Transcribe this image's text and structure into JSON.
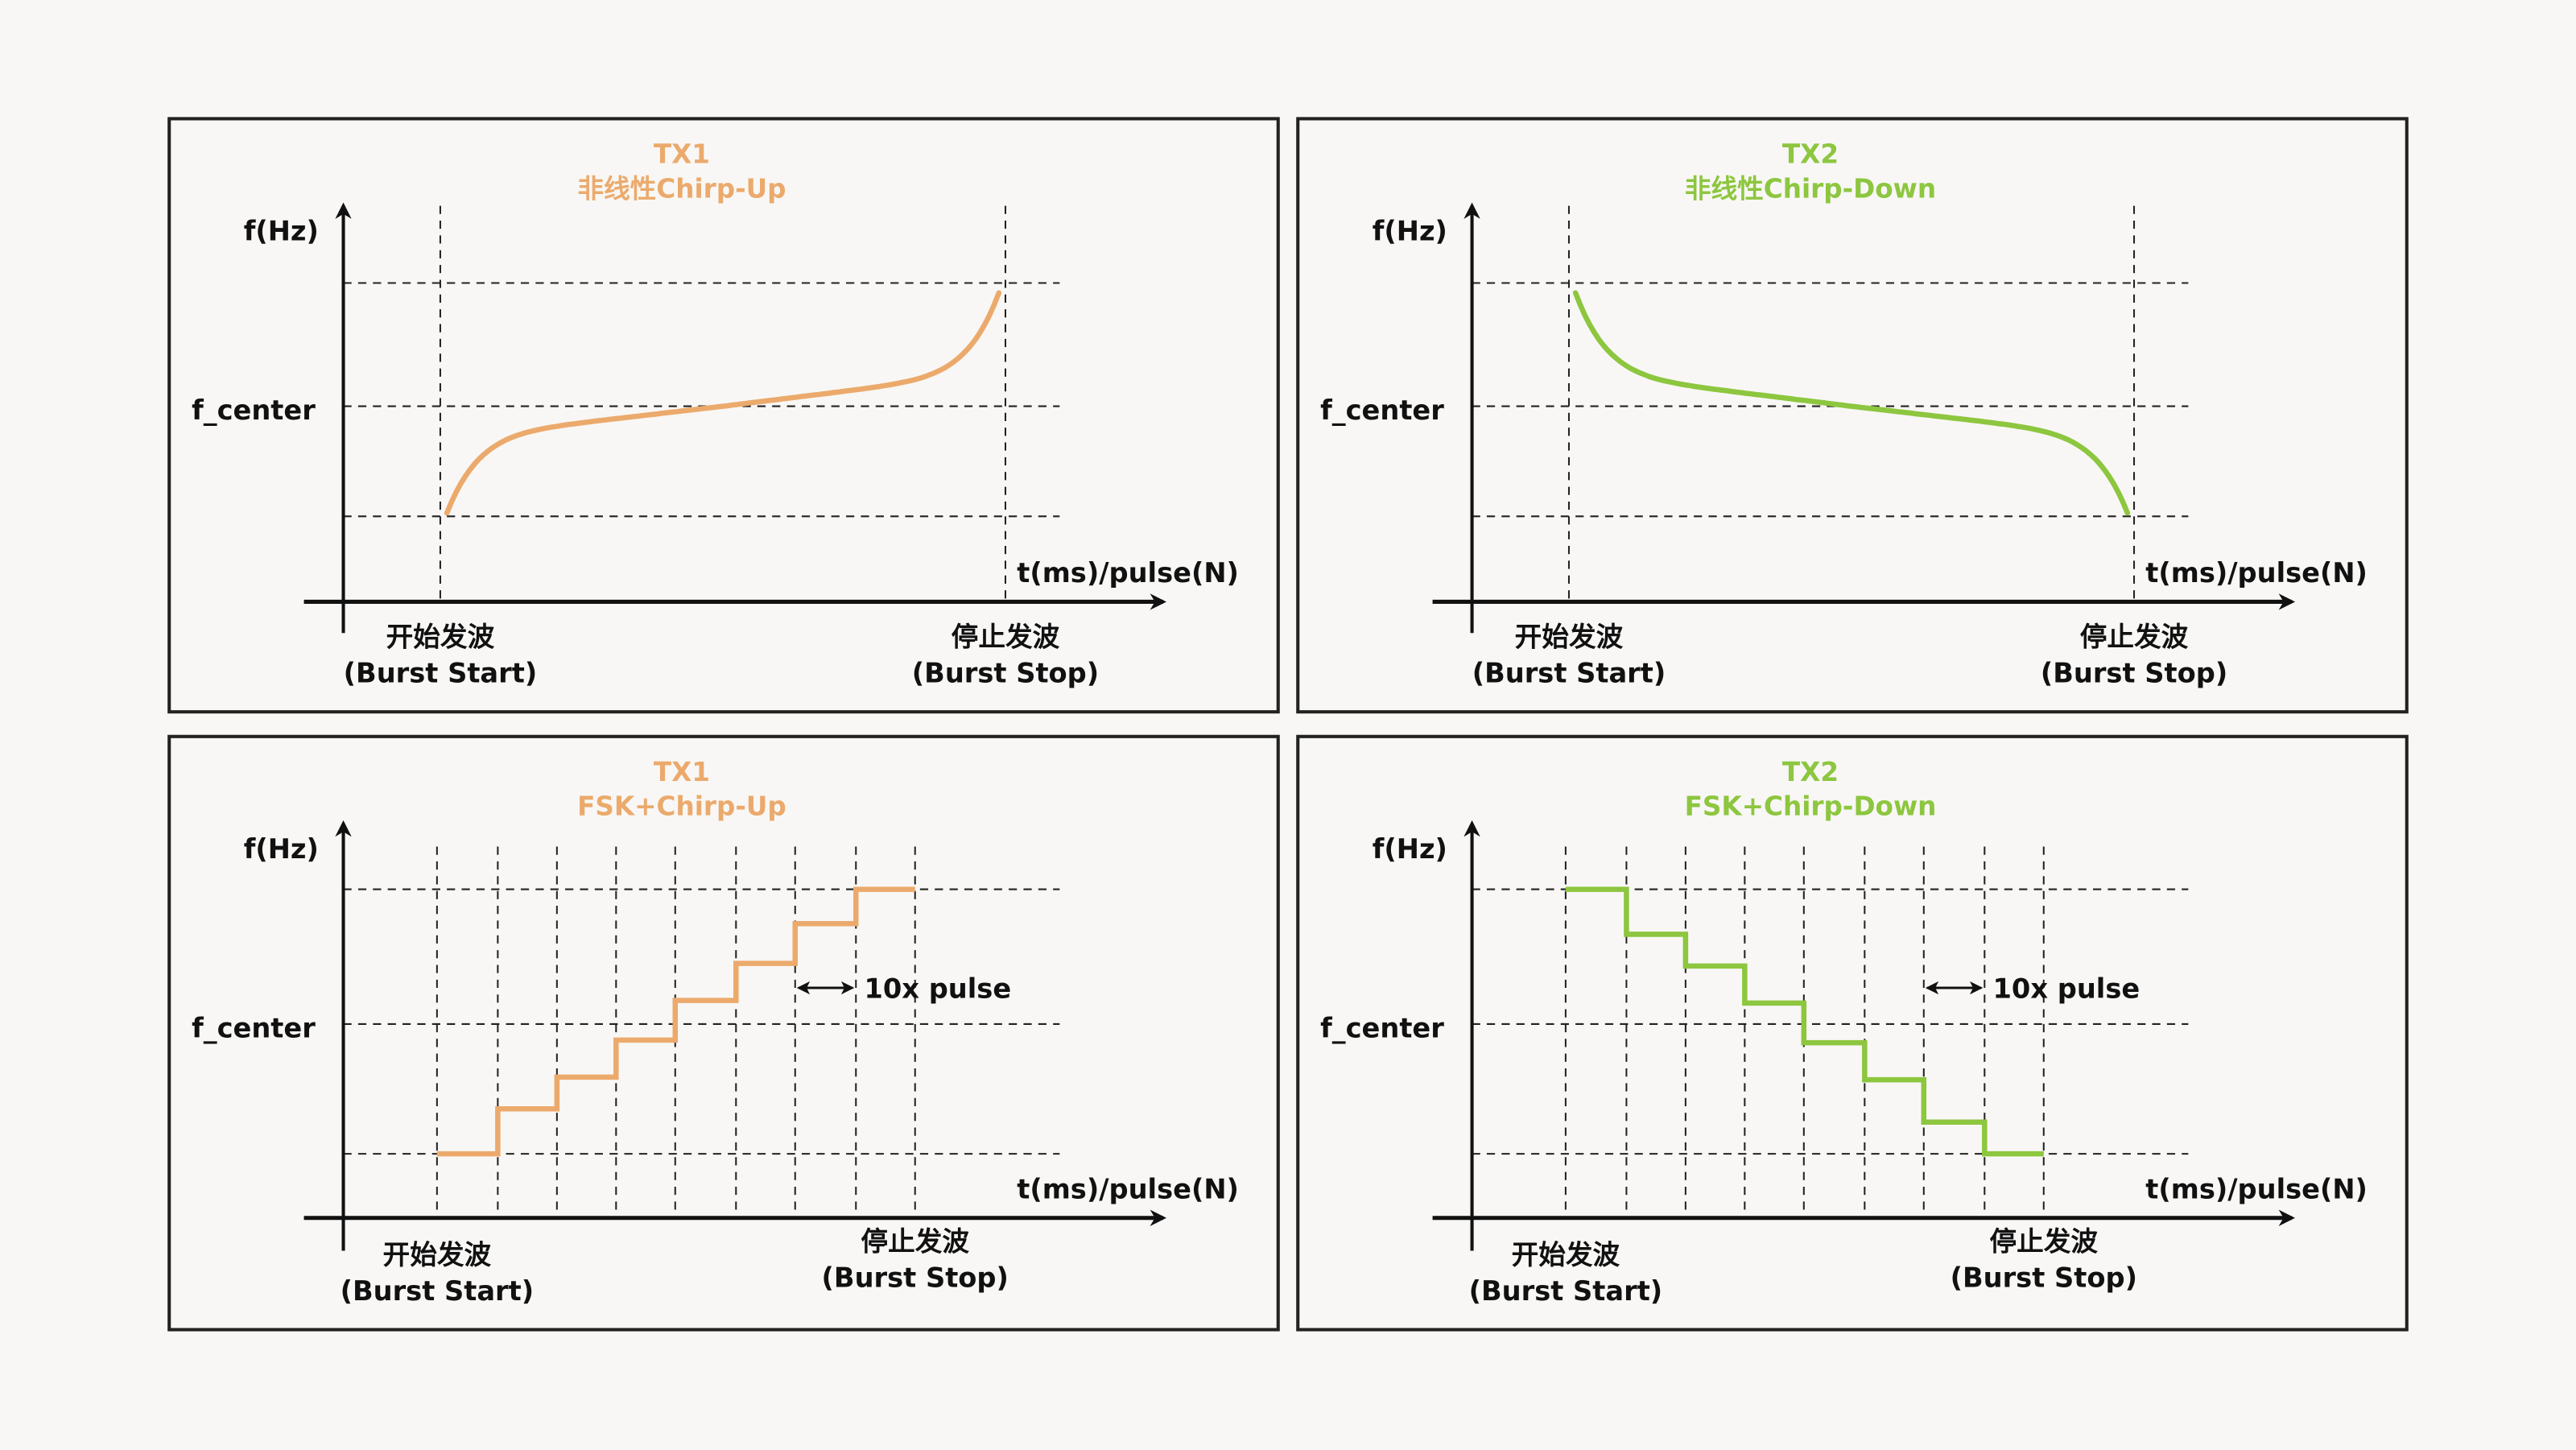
{
  "colors": {
    "background": "#f8f7f5",
    "tx1": "#ebaa6c",
    "tx2": "#8dc63f",
    "axis": "#111111"
  },
  "common": {
    "y_axis_label": "f(Hz)",
    "center_label": "f_center",
    "x_axis_label": "t(ms)/pulse(N)",
    "start_label_cn": "开始发波",
    "start_label_en": "(Burst Start)",
    "stop_label_cn": "停止发波",
    "stop_label_en": "(Burst Stop)",
    "pulse_annotation": "10x pulse"
  },
  "panels": [
    {
      "id": "tx1-nonlinear",
      "tx": "TX1",
      "subtitle": "非线性Chirp-Up",
      "color_key": "tx1",
      "kind": "curve",
      "direction": "up"
    },
    {
      "id": "tx2-nonlinear",
      "tx": "TX2",
      "subtitle": "非线性Chirp-Down",
      "color_key": "tx2",
      "kind": "curve",
      "direction": "down"
    },
    {
      "id": "tx1-fsk",
      "tx": "TX1",
      "subtitle": "FSK+Chirp-Up",
      "color_key": "tx1",
      "kind": "steps",
      "direction": "up",
      "step_levels": [
        0,
        0.17,
        0.29,
        0.43,
        0.58,
        0.72,
        0.87,
        1
      ]
    },
    {
      "id": "tx2-fsk",
      "tx": "TX2",
      "subtitle": "FSK+Chirp-Down",
      "color_key": "tx2",
      "kind": "steps",
      "direction": "down",
      "step_levels": [
        1,
        0.83,
        0.71,
        0.57,
        0.42,
        0.28,
        0.12,
        0
      ]
    }
  ]
}
